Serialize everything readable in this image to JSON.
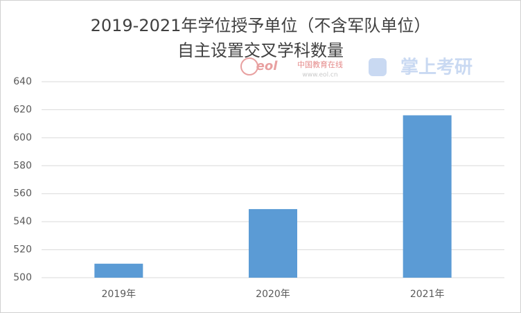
{
  "chart_data": {
    "type": "bar",
    "title": [
      "2019-2021年学位授予单位（不含军队单位）",
      "自主设置交叉学科数量"
    ],
    "watermark": [
      "eol",
      "中国教育在线",
      "www.eol.cn",
      "掌上考研"
    ],
    "categories": [
      "2019年",
      "2020年",
      "2021年"
    ],
    "values": [
      510,
      549,
      616
    ],
    "color": "#5b9bd5",
    "ylim": [
      500,
      640
    ],
    "yticks": [
      500,
      520,
      540,
      560,
      580,
      600,
      620,
      640
    ],
    "grid": true
  }
}
